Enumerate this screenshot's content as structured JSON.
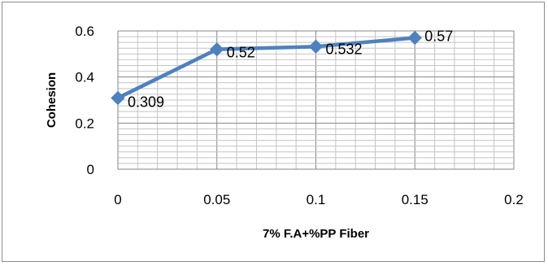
{
  "chart_data": {
    "type": "line",
    "title": "",
    "xlabel": "7% F.A+%PP Fiber",
    "ylabel": "Cohesion",
    "x": [
      0,
      0.05,
      0.1,
      0.15
    ],
    "series": [
      {
        "values": [
          0.309,
          0.52,
          0.532,
          0.57
        ],
        "labels": [
          "0.309",
          "0.52",
          "0.532",
          "0.57"
        ],
        "color": "#4f81bd",
        "marker": "diamond"
      }
    ],
    "xlim": [
      0,
      0.2
    ],
    "ylim": [
      0,
      0.6
    ],
    "x_ticks": [
      "0",
      "0.05",
      "0.1",
      "0.15",
      "0.2"
    ],
    "y_ticks": [
      "0",
      "0.2",
      "0.4",
      "0.6"
    ],
    "grid": true,
    "legend": "none"
  }
}
